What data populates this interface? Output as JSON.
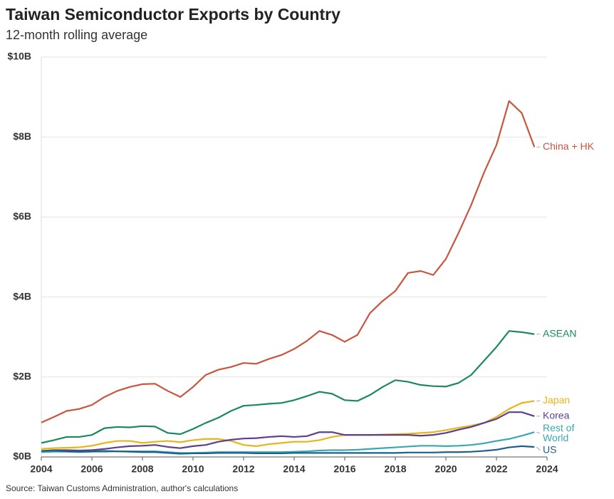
{
  "chart_data": {
    "type": "line",
    "title": "Taiwan Semiconductor Exports by Country",
    "subtitle": "12-month rolling average",
    "source": "Source: Taiwan Customs Administration, author's calculations",
    "x": [
      2004,
      2004.5,
      2005,
      2005.5,
      2006,
      2006.5,
      2007,
      2007.5,
      2008,
      2008.5,
      2009,
      2009.5,
      2010,
      2010.5,
      2011,
      2011.5,
      2012,
      2012.5,
      2013,
      2013.5,
      2014,
      2014.5,
      2015,
      2015.5,
      2016,
      2016.5,
      2017,
      2017.5,
      2018,
      2018.5,
      2019,
      2019.5,
      2020,
      2020.5,
      2021,
      2021.5,
      2022,
      2022.5,
      2023,
      2023.5
    ],
    "series": [
      {
        "name": "China + HK",
        "color": "#c9553f",
        "values": [
          0.86,
          1.0,
          1.15,
          1.2,
          1.3,
          1.5,
          1.65,
          1.75,
          1.82,
          1.83,
          1.65,
          1.5,
          1.75,
          2.05,
          2.18,
          2.25,
          2.35,
          2.33,
          2.45,
          2.55,
          2.7,
          2.9,
          3.15,
          3.05,
          2.88,
          3.05,
          3.6,
          3.9,
          4.15,
          4.6,
          4.65,
          4.55,
          4.95,
          5.6,
          6.3,
          7.1,
          7.8,
          8.9,
          8.6,
          7.75
        ]
      },
      {
        "name": "ASEAN",
        "color": "#1a8a5e",
        "values": [
          0.35,
          0.42,
          0.5,
          0.5,
          0.55,
          0.72,
          0.75,
          0.74,
          0.77,
          0.76,
          0.6,
          0.57,
          0.7,
          0.85,
          0.98,
          1.15,
          1.28,
          1.3,
          1.33,
          1.35,
          1.42,
          1.52,
          1.63,
          1.58,
          1.42,
          1.4,
          1.55,
          1.75,
          1.92,
          1.88,
          1.8,
          1.77,
          1.76,
          1.85,
          2.05,
          2.4,
          2.75,
          3.15,
          3.12,
          3.07
        ]
      },
      {
        "name": "Japan",
        "color": "#e8b41a",
        "values": [
          0.2,
          0.22,
          0.23,
          0.24,
          0.28,
          0.35,
          0.4,
          0.4,
          0.35,
          0.38,
          0.4,
          0.37,
          0.42,
          0.45,
          0.45,
          0.4,
          0.3,
          0.27,
          0.32,
          0.35,
          0.38,
          0.38,
          0.42,
          0.5,
          0.55,
          0.55,
          0.55,
          0.56,
          0.57,
          0.58,
          0.6,
          0.62,
          0.67,
          0.73,
          0.78,
          0.85,
          1.0,
          1.2,
          1.35,
          1.4
        ]
      },
      {
        "name": "Korea",
        "color": "#5e3f8f",
        "values": [
          0.15,
          0.17,
          0.17,
          0.16,
          0.17,
          0.2,
          0.24,
          0.27,
          0.28,
          0.3,
          0.25,
          0.22,
          0.27,
          0.3,
          0.38,
          0.43,
          0.46,
          0.47,
          0.5,
          0.52,
          0.5,
          0.52,
          0.62,
          0.62,
          0.55,
          0.55,
          0.55,
          0.55,
          0.55,
          0.55,
          0.53,
          0.55,
          0.6,
          0.68,
          0.75,
          0.85,
          0.95,
          1.12,
          1.12,
          1.02
        ]
      },
      {
        "name": "Rest of World",
        "color": "#3aa8b0",
        "values": [
          0.12,
          0.13,
          0.13,
          0.12,
          0.13,
          0.13,
          0.14,
          0.14,
          0.14,
          0.14,
          0.12,
          0.1,
          0.1,
          0.11,
          0.12,
          0.12,
          0.12,
          0.12,
          0.12,
          0.12,
          0.13,
          0.14,
          0.16,
          0.17,
          0.17,
          0.18,
          0.2,
          0.22,
          0.24,
          0.26,
          0.28,
          0.28,
          0.27,
          0.28,
          0.3,
          0.34,
          0.4,
          0.45,
          0.53,
          0.62
        ]
      },
      {
        "name": "US",
        "color": "#1e5f8a",
        "values": [
          0.15,
          0.16,
          0.14,
          0.13,
          0.14,
          0.15,
          0.14,
          0.13,
          0.12,
          0.12,
          0.1,
          0.08,
          0.09,
          0.09,
          0.1,
          0.1,
          0.1,
          0.09,
          0.09,
          0.09,
          0.1,
          0.1,
          0.1,
          0.1,
          0.1,
          0.1,
          0.1,
          0.1,
          0.1,
          0.11,
          0.11,
          0.11,
          0.12,
          0.12,
          0.13,
          0.15,
          0.18,
          0.24,
          0.27,
          0.25
        ]
      }
    ],
    "xlim": [
      2004,
      2024
    ],
    "xticks": [
      2004,
      2006,
      2008,
      2010,
      2012,
      2014,
      2016,
      2018,
      2020,
      2022,
      2024
    ],
    "ylim": [
      0,
      10
    ],
    "yticks": [
      {
        "value": 0,
        "label": "$0B"
      },
      {
        "value": 2,
        "label": "$2B"
      },
      {
        "value": 4,
        "label": "$4B"
      },
      {
        "value": 6,
        "label": "$6B"
      },
      {
        "value": 8,
        "label": "$8B"
      },
      {
        "value": 10,
        "label": "$10B"
      }
    ],
    "grid": true
  }
}
